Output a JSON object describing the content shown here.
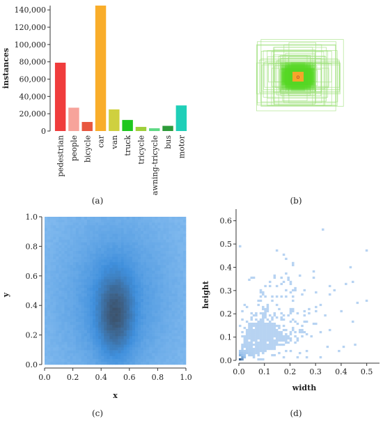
{
  "captions": {
    "a": "(a)",
    "b": "(b)",
    "c": "(c)",
    "d": "(d)"
  },
  "chart_data": [
    {
      "panel": "a",
      "type": "bar",
      "ylabel": "instances",
      "ylim": [
        0,
        145000
      ],
      "yticks": [
        0,
        20000,
        40000,
        60000,
        80000,
        100000,
        120000,
        140000
      ],
      "ytick_labels": [
        "0",
        "20,000",
        "40,000",
        "60,000",
        "80,000",
        "100,000",
        "120,000",
        "140,000"
      ],
      "categories": [
        "pedestrian",
        "people",
        "bicycle",
        "car",
        "van",
        "truck",
        "tricycle",
        "awning-tricycle",
        "bus",
        "motor"
      ],
      "values": [
        79000,
        27000,
        10500,
        145000,
        25000,
        12800,
        4800,
        3200,
        6000,
        29600
      ],
      "colors": [
        "#f03c3c",
        "#f7a39b",
        "#e8573f",
        "#f9ad2a",
        "#cfd03f",
        "#1fc71f",
        "#9fcf3a",
        "#5fd985",
        "#2e9b3a",
        "#1fcfb8"
      ]
    },
    {
      "panel": "b",
      "type": "box-distribution",
      "center_label": "o",
      "colors": {
        "outer": "#9fe07c",
        "mid": "#55d624",
        "inner": "#f4a62a"
      }
    },
    {
      "panel": "c",
      "type": "heatmap",
      "xlabel": "x",
      "ylabel": "y",
      "xlim": [
        0,
        1
      ],
      "ylim": [
        0,
        1
      ],
      "xticks": [
        "0.0",
        "0.2",
        "0.4",
        "0.6",
        "0.8",
        "1.0"
      ],
      "yticks": [
        "0.0",
        "0.2",
        "0.4",
        "0.6",
        "0.8",
        "1.0"
      ],
      "colors": {
        "low": "#8ec2f2",
        "mid": "#3f8fdc",
        "high": "#3c5068"
      }
    },
    {
      "panel": "d",
      "type": "heatmap",
      "xlabel": "width",
      "ylabel": "height",
      "xlim": [
        0,
        0.55
      ],
      "ylim": [
        0,
        0.65
      ],
      "xticks": [
        "0.0",
        "0.1",
        "0.2",
        "0.3",
        "0.4",
        "0.5"
      ],
      "yticks": [
        "0.0",
        "0.1",
        "0.2",
        "0.3",
        "0.4",
        "0.5",
        "0.6"
      ],
      "colors": {
        "low": "#b7d3f2",
        "mid": "#8ab8e8",
        "high": "#1b3f6b"
      }
    }
  ]
}
